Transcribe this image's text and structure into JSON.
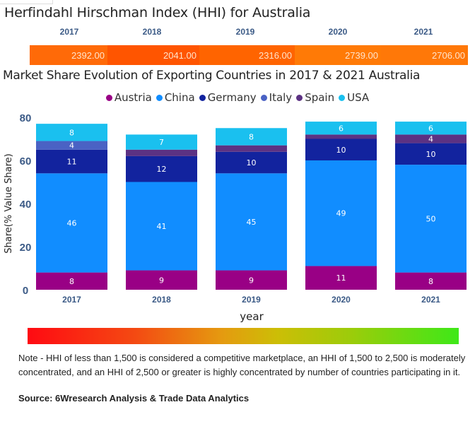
{
  "hhi": {
    "title": "Herfindahl Hirschman Index (HHI) for Australia",
    "years": [
      "2017",
      "2018",
      "2019",
      "2020",
      "2021"
    ],
    "values": [
      "2392.00",
      "2041.00",
      "2316.00",
      "2739.00",
      "2706.00"
    ],
    "cell_colors": [
      "#ff6a08",
      "#ff5500",
      "#ff6400",
      "#ff7a06",
      "#ff7808"
    ]
  },
  "chart_data": {
    "type": "bar",
    "stacked": true,
    "title": "Market Share Evolution of Exporting Countries in 2017 & 2021 Australia",
    "xlabel": "year",
    "ylabel": "Share(% Value Share)",
    "ylim": [
      0,
      80
    ],
    "yticks": [
      "0",
      "20",
      "40",
      "60",
      "80"
    ],
    "categories": [
      "2017",
      "2018",
      "2019",
      "2020",
      "2021"
    ],
    "legend_position": "top-center",
    "series": [
      {
        "name": "Austria",
        "color": "#990085",
        "values": [
          8,
          9,
          9,
          11,
          8
        ],
        "labels": [
          "8",
          "9",
          "9",
          "11",
          "8"
        ]
      },
      {
        "name": "China",
        "color": "#118dff",
        "values": [
          46,
          41,
          45,
          49,
          50
        ],
        "labels": [
          "46",
          "41",
          "45",
          "49",
          "50"
        ]
      },
      {
        "name": "Germany",
        "color": "#12239e",
        "values": [
          11,
          12,
          10,
          10,
          10
        ],
        "labels": [
          "11",
          "12",
          "10",
          "10",
          "10"
        ]
      },
      {
        "name": "Italy",
        "color": "#4a62c4",
        "values": [
          4,
          0,
          0,
          0,
          0
        ],
        "labels": [
          "4",
          "",
          "",
          "",
          ""
        ]
      },
      {
        "name": "Spain",
        "color": "#5c3283",
        "values": [
          0,
          3,
          3,
          2,
          4
        ],
        "labels": [
          "",
          "",
          "",
          "",
          "4"
        ]
      },
      {
        "name": "USA",
        "color": "#1ac0ef",
        "values": [
          8,
          7,
          8,
          6,
          6
        ],
        "labels": [
          "8",
          "7",
          "8",
          "6",
          "6"
        ]
      }
    ]
  },
  "scale": {
    "gradient_description": "red to green HHI color scale"
  },
  "footer": {
    "note": "Note - HHI of less than 1,500 is considered a competitive marketplace, an HHI of 1,500 to 2,500 is moderately concentrated, and an HHI of 2,500 or greater is highly concentrated by number of countries participating in it.",
    "source": "Source: 6Wresearch Analysis & Trade Data Analytics"
  }
}
